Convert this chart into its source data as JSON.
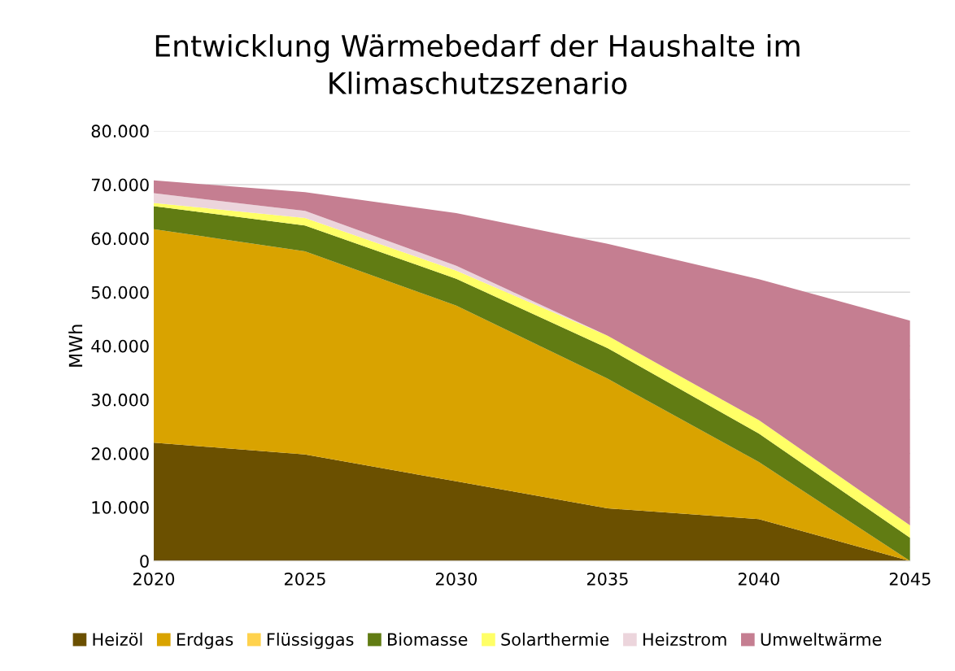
{
  "chart_data": {
    "type": "area",
    "stacked": true,
    "title": "Entwicklung Wärmebedarf der Haushalte im Klimaschutzszenario",
    "ylabel": "MWh",
    "x": [
      2020,
      2025,
      2030,
      2035,
      2040,
      2045
    ],
    "xlim": [
      2020,
      2045
    ],
    "xticks": [
      2020,
      2025,
      2030,
      2035,
      2040,
      2045
    ],
    "ylim": [
      0,
      80000
    ],
    "yticks": [
      {
        "value": 0,
        "label": "0"
      },
      {
        "value": 10000,
        "label": "10.000"
      },
      {
        "value": 20000,
        "label": "20.000"
      },
      {
        "value": 30000,
        "label": "30.000"
      },
      {
        "value": 40000,
        "label": "40.000"
      },
      {
        "value": 50000,
        "label": "50.000"
      },
      {
        "value": 60000,
        "label": "60.000"
      },
      {
        "value": 70000,
        "label": "70.000"
      },
      {
        "value": 80000,
        "label": "80.000"
      }
    ],
    "grid": "y",
    "legend": "bottom",
    "series": [
      {
        "name": "Heizöl",
        "color": "#6b5000",
        "values": [
          22000,
          19800,
          14800,
          9800,
          7800,
          0
        ]
      },
      {
        "name": "Erdgas",
        "color": "#d9a300",
        "values": [
          39700,
          37800,
          32700,
          24100,
          10600,
          0
        ]
      },
      {
        "name": "Flüssiggas",
        "color": "#ffd24d",
        "values": [
          null,
          null,
          null,
          null,
          null,
          null
        ]
      },
      {
        "name": "Biomasse",
        "color": "#617c13",
        "values": [
          4300,
          4800,
          5000,
          5700,
          5300,
          4300
        ]
      },
      {
        "name": "Solarthermie",
        "color": "#ffff66",
        "values": [
          600,
          1400,
          1500,
          2300,
          2500,
          2300
        ]
      },
      {
        "name": "Heizstrom",
        "color": "#ecd5dc",
        "values": [
          1800,
          1300,
          900,
          0,
          0,
          0
        ]
      },
      {
        "name": "Umweltwärme",
        "color": "#c57e91",
        "values": [
          2400,
          3500,
          9800,
          17100,
          26200,
          38100
        ]
      }
    ]
  }
}
